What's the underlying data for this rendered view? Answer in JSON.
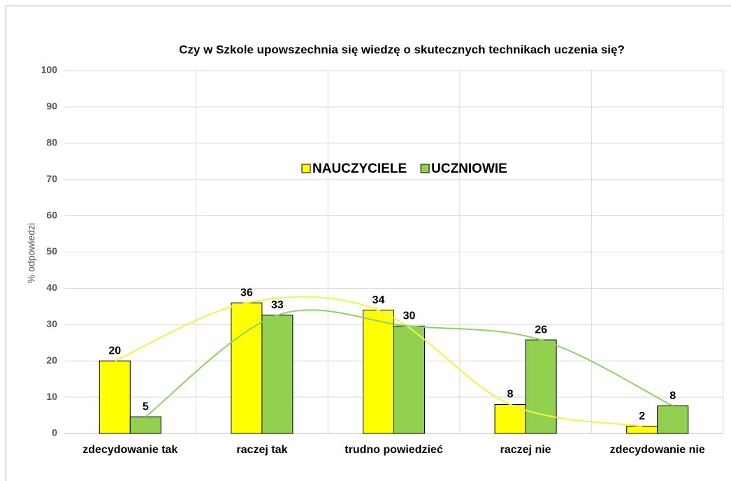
{
  "chart_data": {
    "type": "bar",
    "title": "Czy w Szkole upowszechnia się wiedzę o skutecznych technikach uczenia się?",
    "y_label": "% odpowiedzi",
    "categories": [
      "zdecydowanie tak",
      "raczej tak",
      "trudno powiedzieć",
      "raczej nie",
      "zdecydowanie nie"
    ],
    "series": [
      {
        "name": "NAUCZYCIELE",
        "color": "#ffff00",
        "line_color": "#f2f24a",
        "values": [
          20,
          36,
          34,
          8,
          2
        ]
      },
      {
        "name": "UCZNIOWIE",
        "color": "#92d050",
        "line_color": "#8fd06a",
        "values": [
          4.6,
          32.6,
          29.6,
          25.8,
          7.6
        ],
        "value_labels": [
          "5",
          "33",
          "30",
          "26",
          "8"
        ]
      }
    ],
    "ylim": [
      0,
      100
    ],
    "yticks": [
      0,
      10,
      20,
      30,
      40,
      50,
      60,
      70,
      80,
      90,
      100
    ],
    "grid": true,
    "trendline": true
  }
}
